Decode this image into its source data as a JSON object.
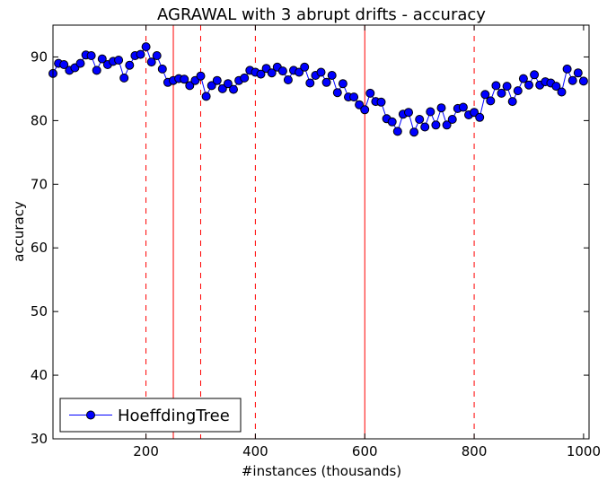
{
  "chart_data": {
    "type": "line",
    "title": "AGRAWAL with 3 abrupt drifts - accuracy",
    "xlabel": "#instances (thousands)",
    "ylabel": "accuracy",
    "xlim": [
      30,
      1010
    ],
    "ylim": [
      30,
      95
    ],
    "xticks": [
      200,
      400,
      600,
      800,
      1000
    ],
    "yticks": [
      30,
      40,
      50,
      60,
      70,
      80,
      90
    ],
    "grid": false,
    "legend_position": "lower-left",
    "drift_lines": {
      "solid": [
        250,
        600
      ],
      "dashed": [
        200,
        300,
        400,
        800
      ],
      "color": "#ff0000"
    },
    "series": [
      {
        "name": "HoeffdingTree",
        "color": "#0000ff",
        "x": [
          30,
          40,
          50,
          60,
          70,
          80,
          90,
          100,
          110,
          120,
          130,
          140,
          150,
          160,
          170,
          180,
          190,
          200,
          210,
          220,
          230,
          240,
          250,
          260,
          270,
          280,
          290,
          300,
          310,
          320,
          330,
          340,
          350,
          360,
          370,
          380,
          390,
          400,
          410,
          420,
          430,
          440,
          450,
          460,
          470,
          480,
          490,
          500,
          510,
          520,
          530,
          540,
          550,
          560,
          570,
          580,
          590,
          600,
          610,
          620,
          630,
          640,
          650,
          660,
          670,
          680,
          690,
          700,
          710,
          720,
          730,
          740,
          750,
          760,
          770,
          780,
          790,
          800,
          810,
          820,
          830,
          840,
          850,
          860,
          870,
          880,
          890,
          900,
          910,
          920,
          930,
          940,
          950,
          960,
          970,
          980,
          990,
          1000
        ],
        "values": [
          87.4,
          89.0,
          88.8,
          87.9,
          88.3,
          89.0,
          90.3,
          90.2,
          87.9,
          89.7,
          88.8,
          89.3,
          89.5,
          86.7,
          88.7,
          90.2,
          90.4,
          91.6,
          89.2,
          90.2,
          88.1,
          86.0,
          86.3,
          86.6,
          86.5,
          85.5,
          86.3,
          87.0,
          83.8,
          85.5,
          86.3,
          85.0,
          85.8,
          84.9,
          86.3,
          86.7,
          87.9,
          87.6,
          87.3,
          88.2,
          87.5,
          88.4,
          87.8,
          86.4,
          87.9,
          87.6,
          88.4,
          85.9,
          87.1,
          87.6,
          86.0,
          87.1,
          84.4,
          85.8,
          83.7,
          83.7,
          82.5,
          81.7,
          84.3,
          83.0,
          82.9,
          80.3,
          79.8,
          78.3,
          81.0,
          81.3,
          78.2,
          80.2,
          79.0,
          81.4,
          79.3,
          82.0,
          79.3,
          80.2,
          81.9,
          82.1,
          80.9,
          81.3,
          80.5,
          84.1,
          83.1,
          85.5,
          84.3,
          85.4,
          83.0,
          84.7,
          86.6,
          85.6,
          87.2,
          85.6,
          86.1,
          85.9,
          85.4,
          84.5,
          88.1,
          86.3,
          87.5,
          86.2
        ]
      }
    ]
  }
}
